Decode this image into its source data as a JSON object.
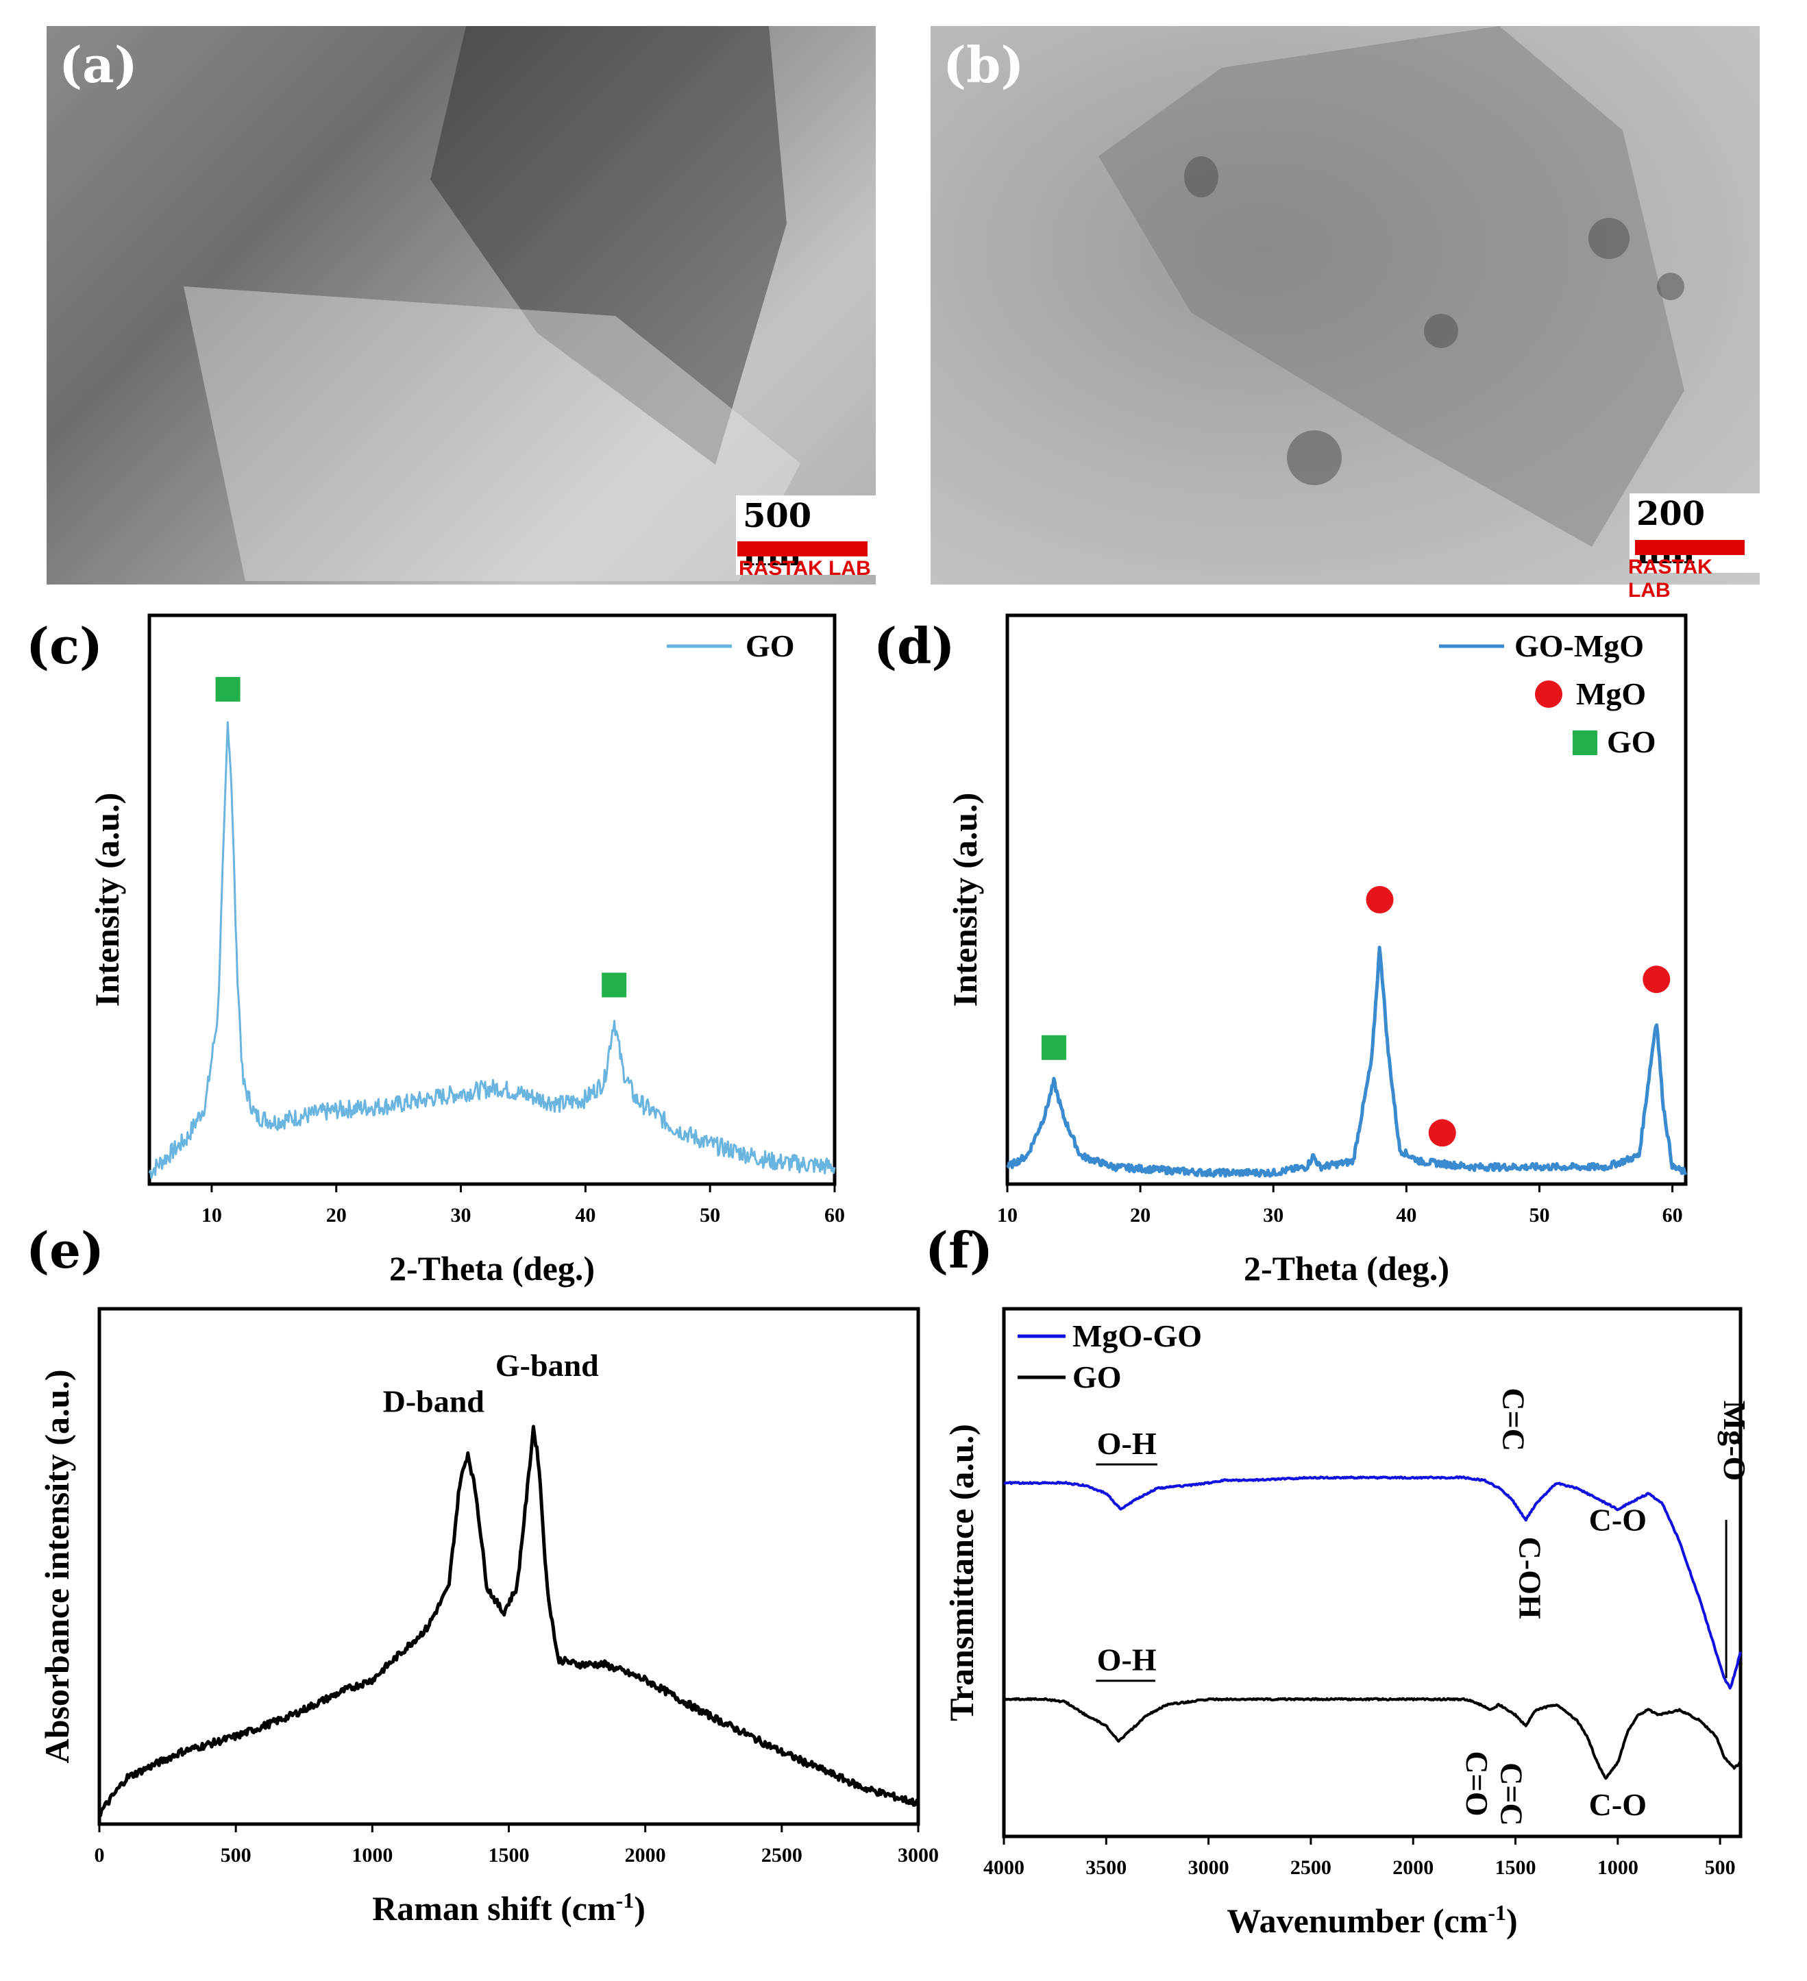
{
  "panels": {
    "a": {
      "letter": "(a)",
      "scale_text": "500 nm",
      "watermark": "RASTAK LAB"
    },
    "b": {
      "letter": "(b)",
      "scale_text": "200 nm",
      "watermark": "RASTAK LAB"
    },
    "c": {
      "letter": "(c)"
    },
    "d": {
      "letter": "(d)"
    },
    "e": {
      "letter": "(e)"
    },
    "f": {
      "letter": "(f)"
    }
  },
  "colors": {
    "go_xrd": "#6ab5e0",
    "gomgo_xrd": "#3a8ad0",
    "raman": "#000000",
    "ftir_mgogo": "#1010e0",
    "ftir_go": "#000000",
    "marker_go": "#22b04a",
    "marker_mgo": "#e8141c",
    "scale_red": "#e00000"
  },
  "chart_data": [
    {
      "id": "c",
      "type": "line",
      "xlabel": "2-Theta (deg.)",
      "ylabel": "Intensity (a.u.)",
      "xlim": [
        5,
        60
      ],
      "ylim": [
        0,
        100
      ],
      "xticks": [
        10,
        20,
        30,
        40,
        50,
        60
      ],
      "series": [
        {
          "name": "GO",
          "x": [
            5,
            8,
            9.5,
            10.5,
            11,
            11.3,
            11.6,
            12,
            12.5,
            13.5,
            15,
            20,
            25,
            30,
            33,
            38,
            40,
            41.5,
            42.3,
            43,
            44,
            47,
            50,
            55,
            60
          ],
          "y": [
            2,
            8,
            14,
            30,
            62,
            82,
            70,
            40,
            18,
            12,
            11,
            13,
            14,
            16,
            17,
            14,
            15,
            18,
            29,
            20,
            15,
            10,
            7,
            4,
            3
          ]
        }
      ],
      "markers": [
        {
          "label": "GO",
          "x": 11.3,
          "y": 87
        },
        {
          "label": "GO",
          "x": 42.3,
          "y": 35
        }
      ],
      "legend": "top-right"
    },
    {
      "id": "d",
      "type": "line",
      "xlabel": "2-Theta (deg.)",
      "ylabel": "Intensity (a.u.)",
      "xlim": [
        10,
        61
      ],
      "ylim": [
        0,
        100
      ],
      "xticks": [
        10,
        20,
        30,
        40,
        50,
        60
      ],
      "series": [
        {
          "name": "GO-MgO",
          "x": [
            10,
            11.5,
            12.8,
            13.5,
            14.2,
            15.5,
            18,
            25,
            30,
            32.5,
            33,
            33.5,
            36,
            37.4,
            38,
            38.6,
            39.5,
            41,
            45,
            50,
            55,
            57.5,
            58.3,
            58.8,
            59.3,
            60,
            61
          ],
          "y": [
            3,
            5,
            12,
            18,
            12,
            5,
            3,
            2,
            2,
            3,
            5,
            3,
            4,
            22,
            42,
            24,
            6,
            4,
            3,
            3,
            3,
            5,
            20,
            29,
            14,
            3,
            2
          ]
        }
      ],
      "markers": [
        {
          "label": "GO",
          "x": 13.5,
          "y": 24
        },
        {
          "label": "MgO",
          "x": 38,
          "y": 50
        },
        {
          "label": "MgO",
          "x": 42.7,
          "y": 9
        },
        {
          "label": "MgO",
          "x": 58.8,
          "y": 36
        }
      ],
      "legend_entries": [
        "GO-MgO",
        "MgO",
        "GO"
      ],
      "legend": "top-right"
    },
    {
      "id": "e",
      "type": "line",
      "xlabel": "Raman shift (cm",
      "xlabel_sup": "-1",
      "xlabel_close": ")",
      "ylabel": "Absorbance intensity (a.u.)",
      "xlim": [
        0,
        3000
      ],
      "ylim": [
        0,
        100
      ],
      "xticks": [
        0,
        500,
        1000,
        1500,
        2000,
        2500,
        3000
      ],
      "series": [
        {
          "name": "Raman",
          "x": [
            0,
            100,
            300,
            500,
            700,
            900,
            1000,
            1100,
            1200,
            1280,
            1320,
            1350,
            1380,
            1420,
            1480,
            1530,
            1570,
            1590,
            1610,
            1640,
            1680,
            1750,
            1850,
            2000,
            2200,
            2500,
            2800,
            3000
          ],
          "y": [
            2,
            9,
            14,
            17,
            21,
            26,
            28,
            33,
            38,
            46,
            66,
            72,
            64,
            46,
            41,
            46,
            66,
            77,
            70,
            46,
            32,
            31,
            31,
            28,
            22,
            14,
            7,
            4
          ]
        }
      ],
      "annotations": [
        {
          "text": "D-band",
          "x": 1350
        },
        {
          "text": "G-band",
          "x": 1590
        }
      ]
    },
    {
      "id": "f",
      "type": "line",
      "xlabel": "Wavenumber (cm",
      "xlabel_sup": "-1",
      "xlabel_close": ")",
      "ylabel": "Transmittance (a.u.)",
      "xlim": [
        4000,
        400
      ],
      "ylim": [
        0,
        100
      ],
      "xticks": [
        4000,
        3500,
        3000,
        2500,
        2000,
        1500,
        1000,
        500
      ],
      "series": [
        {
          "name": "MgO-GO",
          "x": [
            4000,
            3700,
            3600,
            3500,
            3430,
            3350,
            3250,
            3100,
            3000,
            2920,
            2800,
            2500,
            2000,
            1750,
            1650,
            1580,
            1520,
            1450,
            1400,
            1300,
            1200,
            1100,
            1000,
            900,
            850,
            780,
            700,
            600,
            520,
            480,
            450,
            420,
            400
          ],
          "y": [
            67,
            67,
            66.5,
            65,
            62,
            64,
            66,
            66.5,
            67,
            67.5,
            67.5,
            68,
            68,
            68,
            67.5,
            66,
            64,
            60,
            63,
            67,
            66,
            64,
            62,
            64,
            65,
            63,
            56,
            45,
            35,
            30,
            28,
            32,
            35
          ]
        },
        {
          "name": "GO",
          "x": [
            4000,
            3800,
            3700,
            3600,
            3500,
            3440,
            3300,
            3200,
            3000,
            2800,
            2500,
            2000,
            1750,
            1700,
            1620,
            1580,
            1500,
            1450,
            1400,
            1300,
            1200,
            1150,
            1100,
            1060,
            1000,
            950,
            900,
            850,
            800,
            700,
            600,
            520,
            480,
            430,
            400
          ],
          "y": [
            26,
            26,
            25.5,
            23,
            21,
            18,
            23,
            25,
            26,
            26,
            26,
            26,
            26,
            25.5,
            24,
            25,
            23,
            21,
            24,
            25,
            22,
            19,
            14,
            11,
            14,
            20,
            23,
            24,
            23,
            24,
            22,
            19,
            15,
            13,
            14
          ]
        }
      ],
      "annotations": [
        {
          "text": "O-H",
          "series": "MgO-GO"
        },
        {
          "text": "C=C",
          "series": "MgO-GO",
          "rotated": true
        },
        {
          "text": "C-OH",
          "series": "MgO-GO",
          "rotated": true
        },
        {
          "text": "C-O",
          "series": "MgO-GO"
        },
        {
          "text": "Mg-O",
          "series": "MgO-GO",
          "rotated": true
        },
        {
          "text": "O-H",
          "series": "GO"
        },
        {
          "text": "C=O",
          "series": "GO",
          "rotated": true
        },
        {
          "text": "C=C",
          "series": "GO",
          "rotated": true
        },
        {
          "text": "C-O",
          "series": "GO"
        }
      ],
      "legend": "top-left"
    }
  ]
}
